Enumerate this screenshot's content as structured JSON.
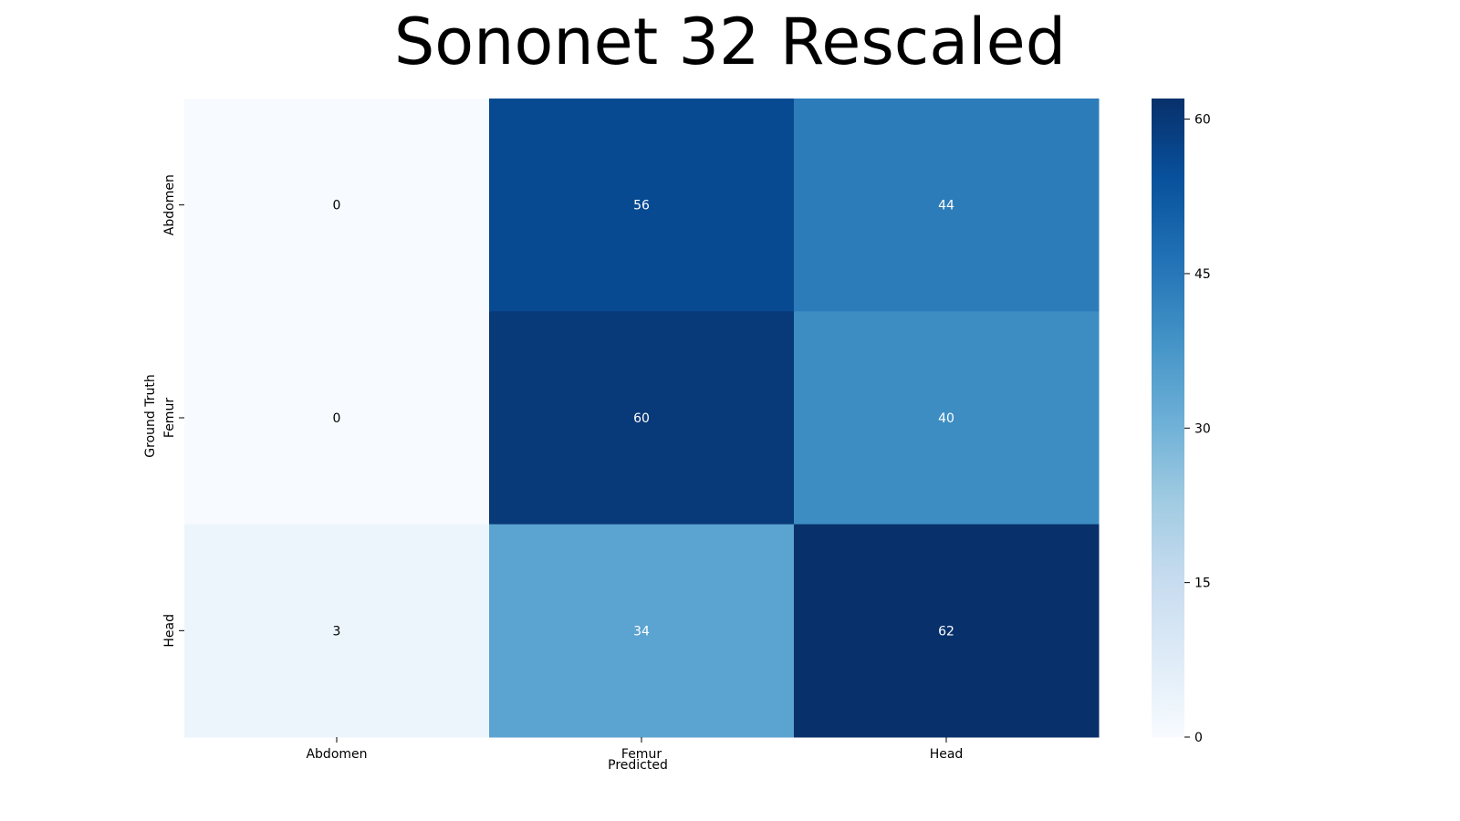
{
  "chart_data": {
    "type": "heatmap",
    "title": "Sononet 32 Rescaled",
    "xlabel": "Predicted",
    "ylabel": "Ground Truth",
    "x_categories": [
      "Abdomen",
      "Femur",
      "Head"
    ],
    "y_categories": [
      "Abdomen",
      "Femur",
      "Head"
    ],
    "values": [
      [
        0,
        56,
        44
      ],
      [
        0,
        60,
        40
      ],
      [
        3,
        34,
        62
      ]
    ],
    "colorbar": {
      "min": 0,
      "max": 62,
      "ticks": [
        0,
        15,
        30,
        45,
        60
      ],
      "colormap": "Blues"
    },
    "colors": {
      "low": "#f7fbff",
      "high": "#08306b",
      "text_dark": "#000000",
      "text_light": "#ffffff"
    }
  }
}
